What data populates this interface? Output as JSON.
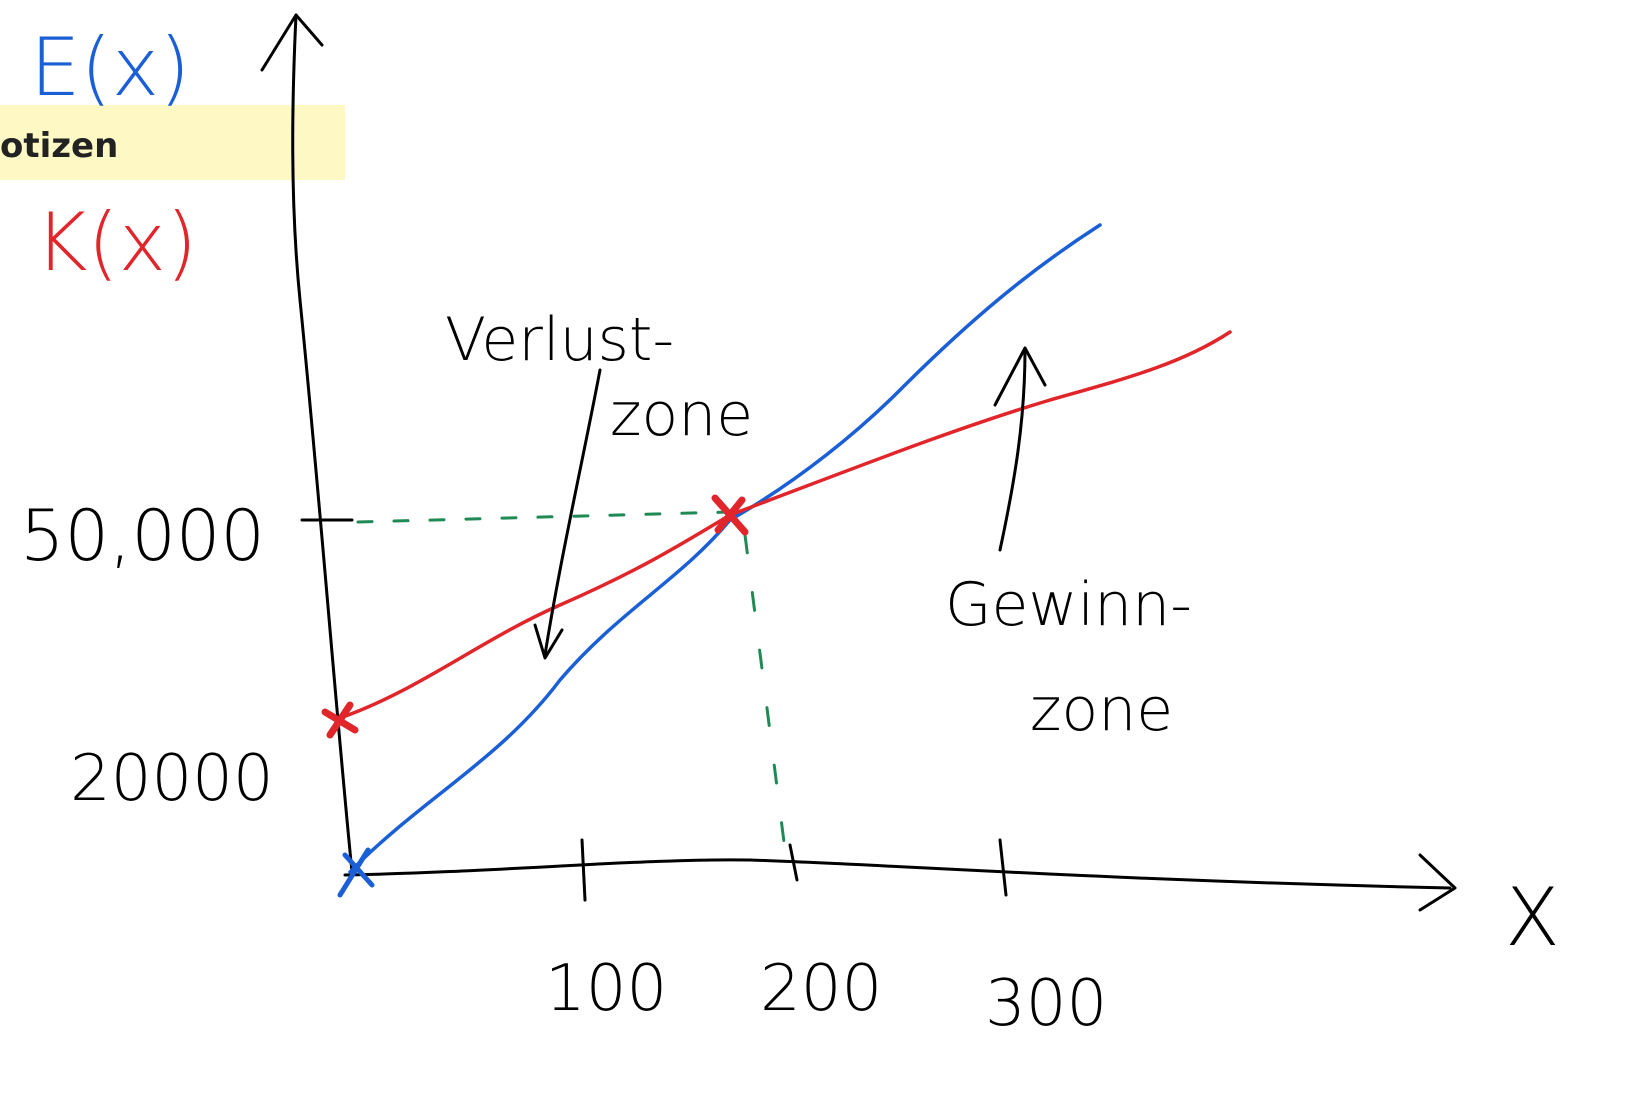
{
  "header": {
    "label": "otizen"
  },
  "legend": {
    "revenue": "E(x)",
    "cost": "K(x)"
  },
  "y_labels": [
    "50,000",
    "20000"
  ],
  "x_labels": [
    "100",
    "200",
    "300"
  ],
  "x_axis_label": "X",
  "annotations": [
    {
      "lines": [
        "Verlust-",
        "zone"
      ]
    },
    {
      "lines": [
        "Gewinn-",
        "zone"
      ]
    }
  ]
}
